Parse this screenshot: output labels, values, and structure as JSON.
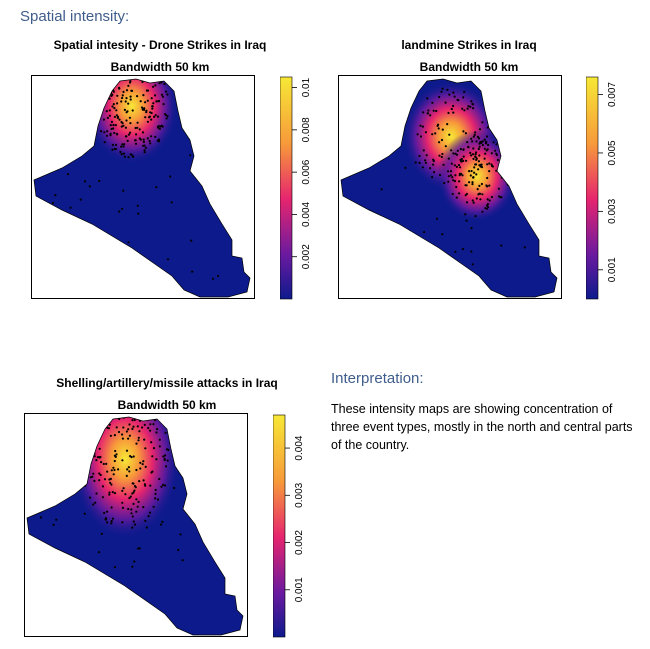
{
  "page": {
    "heading_spatial": "Spatial intensity:",
    "heading_interpretation": "Interpretation:",
    "interpretation_text": "These intensity maps are showing concentration of three event types, mostly in the north and central parts of the country."
  },
  "colors": {
    "low": "#0d1a8c",
    "mid_low": "#6b1aa0",
    "mid": "#e6256e",
    "mid_high": "#f79a3a",
    "high": "#f7e836",
    "points": "#000000"
  },
  "chart_data": [
    {
      "type": "heatmap",
      "title": "Spatial intesity - Drone Strikes in Iraq",
      "subtitle": "Bandwidth 50 km",
      "legend": {
        "ticks": [
          "0.002",
          "0.004",
          "0.006",
          "0.008",
          "0.01"
        ],
        "tick_values": [
          0.002,
          0.004,
          0.006,
          0.008,
          0.01
        ],
        "range": [
          0,
          0.0105
        ]
      },
      "hotspot": "north"
    },
    {
      "type": "heatmap",
      "title": "landmine Strikes in Iraq",
      "subtitle": "Bandwidth 50 km",
      "legend": {
        "ticks": [
          "0.001",
          "0.003",
          "0.005",
          "0.007"
        ],
        "tick_values": [
          0.001,
          0.003,
          0.005,
          0.007
        ],
        "range": [
          0,
          0.0076
        ]
      },
      "hotspot": "central"
    },
    {
      "type": "heatmap",
      "title": "Shelling/artillery/missile attacks in Iraq",
      "subtitle": "Bandwidth 50 km",
      "legend": {
        "ticks": [
          "0.001",
          "0.002",
          "0.003",
          "0.004"
        ],
        "tick_values": [
          0.001,
          0.002,
          0.003,
          0.004
        ],
        "range": [
          0,
          0.0047
        ]
      },
      "hotspot": "north-central"
    }
  ]
}
